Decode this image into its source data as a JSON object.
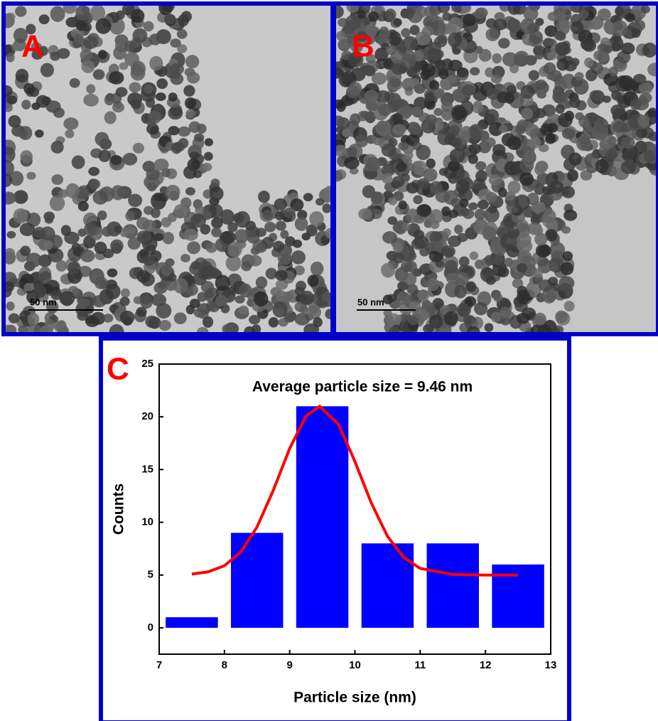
{
  "panels": [
    {
      "label": "A",
      "scale_bar": "50 nm"
    },
    {
      "label": "B",
      "scale_bar": "50 nm"
    }
  ],
  "chart_data": {
    "type": "histogram",
    "panel_label": "C",
    "title": "Average particle size = 9.46 nm",
    "x_label": "Particle size (nm)",
    "y_label": "Counts",
    "bins": [
      7,
      8,
      9,
      10,
      11,
      12,
      13
    ],
    "values": [
      1,
      9,
      21,
      8,
      8,
      6
    ],
    "color": "#0000ff",
    "fit": {
      "color": "#ff0000",
      "x": [
        7.5,
        7.75,
        8,
        8.25,
        8.5,
        8.75,
        9,
        9.25,
        9.46,
        9.75,
        10,
        10.25,
        10.5,
        10.75,
        11,
        11.5,
        12,
        12.5
      ],
      "values": [
        5.09,
        5.3,
        5.88,
        7.18,
        9.56,
        13.05,
        17,
        20.07,
        21,
        19.27,
        15.76,
        11.84,
        8.66,
        6.66,
        5.63,
        5.06,
        5,
        5
      ]
    },
    "xlim": [
      7,
      13
    ],
    "xticks": [
      7,
      8,
      9,
      10,
      11,
      12,
      13
    ],
    "ylim": [
      -2.5,
      25
    ],
    "yticks": [
      0,
      5,
      10,
      15,
      20,
      25
    ]
  }
}
